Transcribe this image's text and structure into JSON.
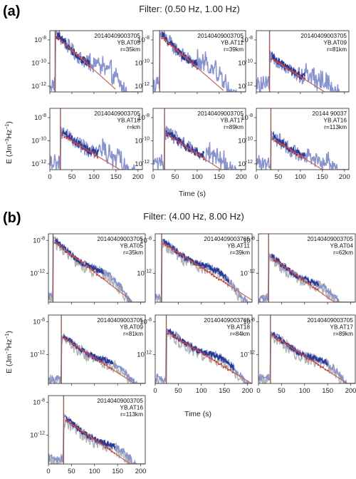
{
  "figure": {
    "panel_a_label": "(a)",
    "panel_b_label": "(b)",
    "filter_a": "Filter: (0.50 Hz, 1.00 Hz)",
    "filter_b": "Filter: (4.00 Hz, 8.00 Hz)",
    "ylabel_parts": [
      "E (Jm",
      "−3",
      "Hz",
      "−1",
      ")"
    ],
    "xlabel": "Time (s)"
  },
  "colors": {
    "light_trace": "#8892cc",
    "dark_trace": "#283a96",
    "fit_line": "#c06a5a",
    "fit_points": "#d63030",
    "gray_trace": "#b4b4b4",
    "onset_marker": "#9a5a52"
  },
  "chart_data": [
    {
      "type": "line",
      "panel": "a",
      "row": 0,
      "col": 0,
      "annotation": [
        "20140409003705",
        "YB.AT05",
        "r=35km"
      ],
      "xlim": [
        0,
        210
      ],
      "y_exponent_range": [
        -12.5,
        -7.2
      ],
      "yticks_exp": [
        -8,
        -10,
        -12
      ],
      "xticks": [
        0,
        50,
        100,
        150,
        200
      ],
      "show_xticks": false,
      "onset_s": 12,
      "fit_window_s": [
        15,
        90
      ],
      "peak_exp": -7.4,
      "decay_per_100s": 3.4
    },
    {
      "type": "line",
      "panel": "a",
      "row": 0,
      "col": 1,
      "annotation": [
        "20140409003705",
        "YB.AT11",
        "r=39km"
      ],
      "xlim": [
        0,
        210
      ],
      "y_exponent_range": [
        -12.5,
        -7.2
      ],
      "yticks_exp": [
        -8,
        -10,
        -12
      ],
      "xticks": [
        0,
        50,
        100,
        150,
        200
      ],
      "show_xticks": false,
      "onset_s": 15,
      "fit_window_s": [
        20,
        100
      ],
      "peak_exp": -7.4,
      "decay_per_100s": 3.3
    },
    {
      "type": "line",
      "panel": "a",
      "row": 0,
      "col": 2,
      "annotation": [
        "20140409003705",
        "YB.AT09",
        "r=81km"
      ],
      "xlim": [
        0,
        210
      ],
      "y_exponent_range": [
        -12.5,
        -7.2
      ],
      "yticks_exp": [
        -8,
        -10,
        -12
      ],
      "xticks": [
        0,
        50,
        100,
        150,
        200
      ],
      "show_xticks": false,
      "onset_s": 30,
      "fit_window_s": [
        35,
        110
      ],
      "peak_exp": -9.3,
      "decay_per_100s": 2.4
    },
    {
      "type": "line",
      "panel": "a",
      "row": 1,
      "col": 0,
      "annotation": [
        "20140409003705",
        "YB.AT18",
        "r=km"
      ],
      "xlim": [
        0,
        210
      ],
      "y_exponent_range": [
        -12.5,
        -7.2
      ],
      "yticks_exp": [
        -8,
        -10,
        -12
      ],
      "xticks": [
        0,
        50,
        100,
        150,
        200
      ],
      "show_xticks": true,
      "onset_s": 24,
      "fit_window_s": [
        28,
        110
      ],
      "peak_exp": -9.2,
      "decay_per_100s": 2.3
    },
    {
      "type": "line",
      "panel": "a",
      "row": 1,
      "col": 1,
      "annotation": [
        "20140409003705",
        "YB.AT17",
        "r=89km"
      ],
      "xlim": [
        0,
        210
      ],
      "y_exponent_range": [
        -12.5,
        -7.2
      ],
      "yticks_exp": [
        -8,
        -10,
        -12
      ],
      "xticks": [
        0,
        50,
        100,
        150,
        200
      ],
      "show_xticks": true,
      "onset_s": 26,
      "fit_window_s": [
        30,
        115
      ],
      "peak_exp": -9.1,
      "decay_per_100s": 2.5
    },
    {
      "type": "line",
      "panel": "a",
      "row": 1,
      "col": 2,
      "annotation": [
        "20144  90037",
        "YB.AT16",
        "r=113km"
      ],
      "xlim": [
        0,
        210
      ],
      "y_exponent_range": [
        -12.5,
        -7.2
      ],
      "yticks_exp": [
        -8,
        -10,
        -12
      ],
      "xticks": [
        0,
        50,
        100,
        150,
        200
      ],
      "show_xticks": true,
      "onset_s": 33,
      "fit_window_s": [
        38,
        110
      ],
      "peak_exp": -9.5,
      "decay_per_100s": 2.4
    },
    {
      "type": "line",
      "panel": "b",
      "row": 0,
      "col": 0,
      "annotation": [
        "20140409003705",
        "YB.AT05",
        "r=35km"
      ],
      "xlim": [
        0,
        210
      ],
      "y_exponent_range": [
        -15.5,
        -7.2
      ],
      "yticks_exp": [
        -8,
        -12
      ],
      "xticks": [
        0,
        50,
        100,
        150,
        200
      ],
      "show_xticks": false,
      "onset_s": 10,
      "fit_window_s": [
        15,
        120
      ],
      "peak_exp": -7.8,
      "decay_per_100s": 4.3
    },
    {
      "type": "line",
      "panel": "b",
      "row": 0,
      "col": 1,
      "annotation": [
        "20140409003705",
        "YB.AT11",
        "r=39km"
      ],
      "xlim": [
        0,
        210
      ],
      "y_exponent_range": [
        -15.5,
        -7.2
      ],
      "yticks_exp": [
        -8,
        -12
      ],
      "xticks": [
        0,
        50,
        100,
        150,
        200
      ],
      "show_xticks": false,
      "onset_s": 14,
      "fit_window_s": [
        18,
        160
      ],
      "peak_exp": -8.0,
      "decay_per_100s": 3.6
    },
    {
      "type": "line",
      "panel": "b",
      "row": 0,
      "col": 2,
      "annotation": [
        "20140409003705",
        "YB.AT04",
        "r=62km"
      ],
      "xlim": [
        0,
        210
      ],
      "y_exponent_range": [
        -15.5,
        -7.2
      ],
      "yticks_exp": [
        -8,
        -12
      ],
      "xticks": [
        0,
        50,
        100,
        150,
        200
      ],
      "show_xticks": false,
      "onset_s": 22,
      "fit_window_s": [
        28,
        130
      ],
      "peak_exp": -9.6,
      "decay_per_100s": 4.0
    },
    {
      "type": "line",
      "panel": "b",
      "row": 1,
      "col": 0,
      "annotation": [
        "20140409003705",
        "YB.AT09",
        "r=81km"
      ],
      "xlim": [
        0,
        210
      ],
      "y_exponent_range": [
        -15.5,
        -7.2
      ],
      "yticks_exp": [
        -8,
        -12
      ],
      "xticks": [
        0,
        50,
        100,
        150,
        200
      ],
      "show_xticks": false,
      "onset_s": 28,
      "fit_window_s": [
        32,
        140
      ],
      "peak_exp": -9.6,
      "decay_per_100s": 3.6
    },
    {
      "type": "line",
      "panel": "b",
      "row": 1,
      "col": 1,
      "annotation": [
        "20140409003705",
        "YB.AT18",
        "r=84km"
      ],
      "xlim": [
        0,
        210
      ],
      "y_exponent_range": [
        -15.5,
        -7.2
      ],
      "yticks_exp": [
        -8,
        -12
      ],
      "xticks": [
        0,
        50,
        100,
        150,
        200
      ],
      "show_xticks": true,
      "onset_s": 24,
      "fit_window_s": [
        28,
        170
      ],
      "peak_exp": -9.0,
      "decay_per_100s": 3.4
    },
    {
      "type": "line",
      "panel": "b",
      "row": 1,
      "col": 2,
      "annotation": [
        "20140409003705",
        "YB.AT17",
        "r=89km"
      ],
      "xlim": [
        0,
        210
      ],
      "y_exponent_range": [
        -15.5,
        -7.2
      ],
      "yticks_exp": [
        -8,
        -12
      ],
      "xticks": [
        0,
        50,
        100,
        150,
        200
      ],
      "show_xticks": true,
      "onset_s": 26,
      "fit_window_s": [
        30,
        150
      ],
      "peak_exp": -9.3,
      "decay_per_100s": 3.6
    },
    {
      "type": "line",
      "panel": "b",
      "row": 2,
      "col": 0,
      "annotation": [
        "20140409003705",
        "YB.AT16",
        "r=113km"
      ],
      "xlim": [
        0,
        210
      ],
      "y_exponent_range": [
        -15.5,
        -7.2
      ],
      "yticks_exp": [
        -8,
        -12
      ],
      "xticks": [
        0,
        50,
        100,
        150,
        200
      ],
      "show_xticks": true,
      "onset_s": 33,
      "fit_window_s": [
        38,
        145
      ],
      "peak_exp": -9.8,
      "decay_per_100s": 3.8
    }
  ]
}
